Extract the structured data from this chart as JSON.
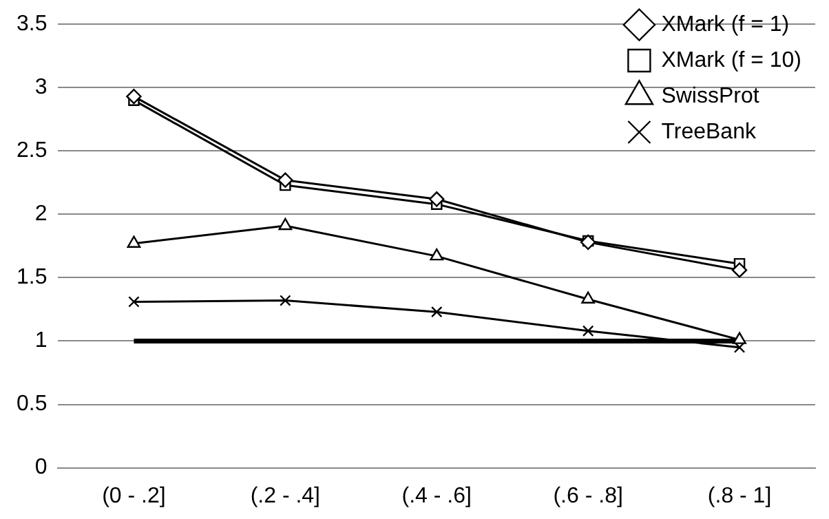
{
  "chart_data": {
    "type": "line",
    "categories": [
      "(0 - .2]",
      "(.2 - .4]",
      "(.4 - .6]",
      "(.6 - .8]",
      "(.8 - 1]"
    ],
    "series": [
      {
        "name": "XMark (f = 1)",
        "color": "#000000",
        "marker": "diamond",
        "values": [
          2.93,
          2.27,
          2.12,
          1.78,
          1.56
        ]
      },
      {
        "name": "XMark (f = 10)",
        "color": "#000000",
        "marker": "square",
        "values": [
          2.9,
          2.23,
          2.08,
          1.79,
          1.61
        ]
      },
      {
        "name": "SwissProt",
        "color": "#000000",
        "marker": "triangle",
        "values": [
          1.77,
          1.91,
          1.67,
          1.33,
          1.01
        ]
      },
      {
        "name": "TreeBank",
        "color": "#000000",
        "marker": "cross",
        "values": [
          1.31,
          1.32,
          1.23,
          1.08,
          0.95
        ]
      },
      {
        "color": "#000000",
        "marker": "none",
        "values": [
          1,
          1,
          1,
          1,
          1
        ]
      }
    ],
    "ylim": [
      0,
      3.5
    ],
    "yticks": [
      0,
      0.5,
      1,
      1.5,
      2,
      2.5,
      3,
      3.5
    ],
    "grid": "y",
    "legend": "top right"
  }
}
